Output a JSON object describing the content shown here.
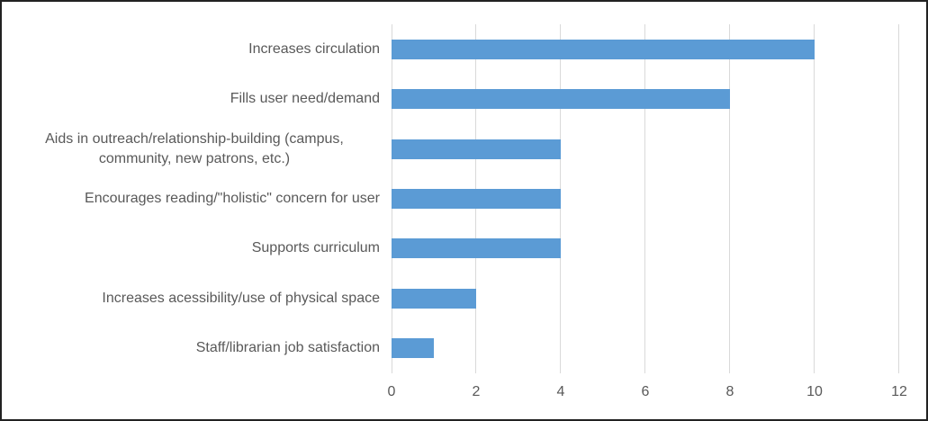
{
  "chart_data": {
    "type": "bar",
    "orientation": "horizontal",
    "title": "",
    "xlabel": "",
    "ylabel": "",
    "categories": [
      "Increases circulation",
      "Fills user need/demand",
      "Aids in outreach/relationship-building (campus,\ncommunity, new patrons, etc.)",
      "Encourages reading/\"holistic\" concern for user",
      "Supports curriculum",
      "Increases acessibility/use of physical space",
      "Staff/librarian job satisfaction"
    ],
    "values": [
      10,
      8,
      4,
      4,
      4,
      2,
      1
    ],
    "xticks": [
      "0",
      "2",
      "4",
      "6",
      "8",
      "10",
      "12"
    ],
    "xlim": [
      0,
      12
    ],
    "grid": "vertical-gridlines-only",
    "legend": "none",
    "bar_color": "#5B9BD5",
    "gridline_color": "#D9D9D9",
    "text_color": "#595959",
    "background_color": "#FFFFFF"
  }
}
